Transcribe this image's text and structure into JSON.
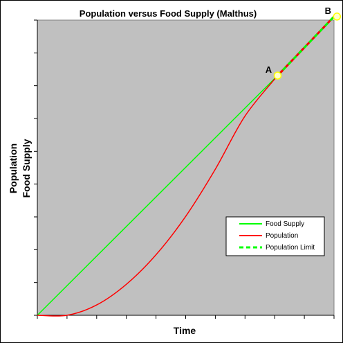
{
  "chart_data": {
    "type": "line",
    "title": "Population versus Food Supply (Malthus)",
    "xlabel": "Time",
    "ylabel_lines": [
      "Population",
      "Food Supply"
    ],
    "xlim": [
      0,
      10
    ],
    "ylim": [
      0,
      10
    ],
    "x_tick_count": 10,
    "y_tick_count": 9,
    "grid": false,
    "plot_background": "#c0c0c0",
    "legend_position": "lower-right",
    "series": [
      {
        "name": "Food Supply",
        "color": "#00ff00",
        "style": "solid",
        "x": [
          0,
          8.1
        ],
        "y": [
          0,
          8.12
        ]
      },
      {
        "name": "Population",
        "color": "#ff0000",
        "style": "solid",
        "x": [
          0,
          1,
          2,
          3,
          4,
          5,
          6,
          7,
          8.1
        ],
        "y": [
          0,
          0,
          0.35,
          1.05,
          2.05,
          3.35,
          4.95,
          6.75,
          8.12
        ]
      },
      {
        "name": "Population Limit",
        "color": "#00ff00",
        "style": "dashed",
        "underlay_color": "#ff0000",
        "x": [
          8.1,
          10.1,
          12.5
        ],
        "y": [
          8.12,
          10.12,
          10.12
        ]
      }
    ],
    "points": [
      {
        "label": "A",
        "x": 8.1,
        "y": 8.12
      },
      {
        "label": "B",
        "x": 10.1,
        "y": 10.12
      }
    ],
    "point_fill": "#ffffcc",
    "point_stroke": "#ffff00"
  }
}
